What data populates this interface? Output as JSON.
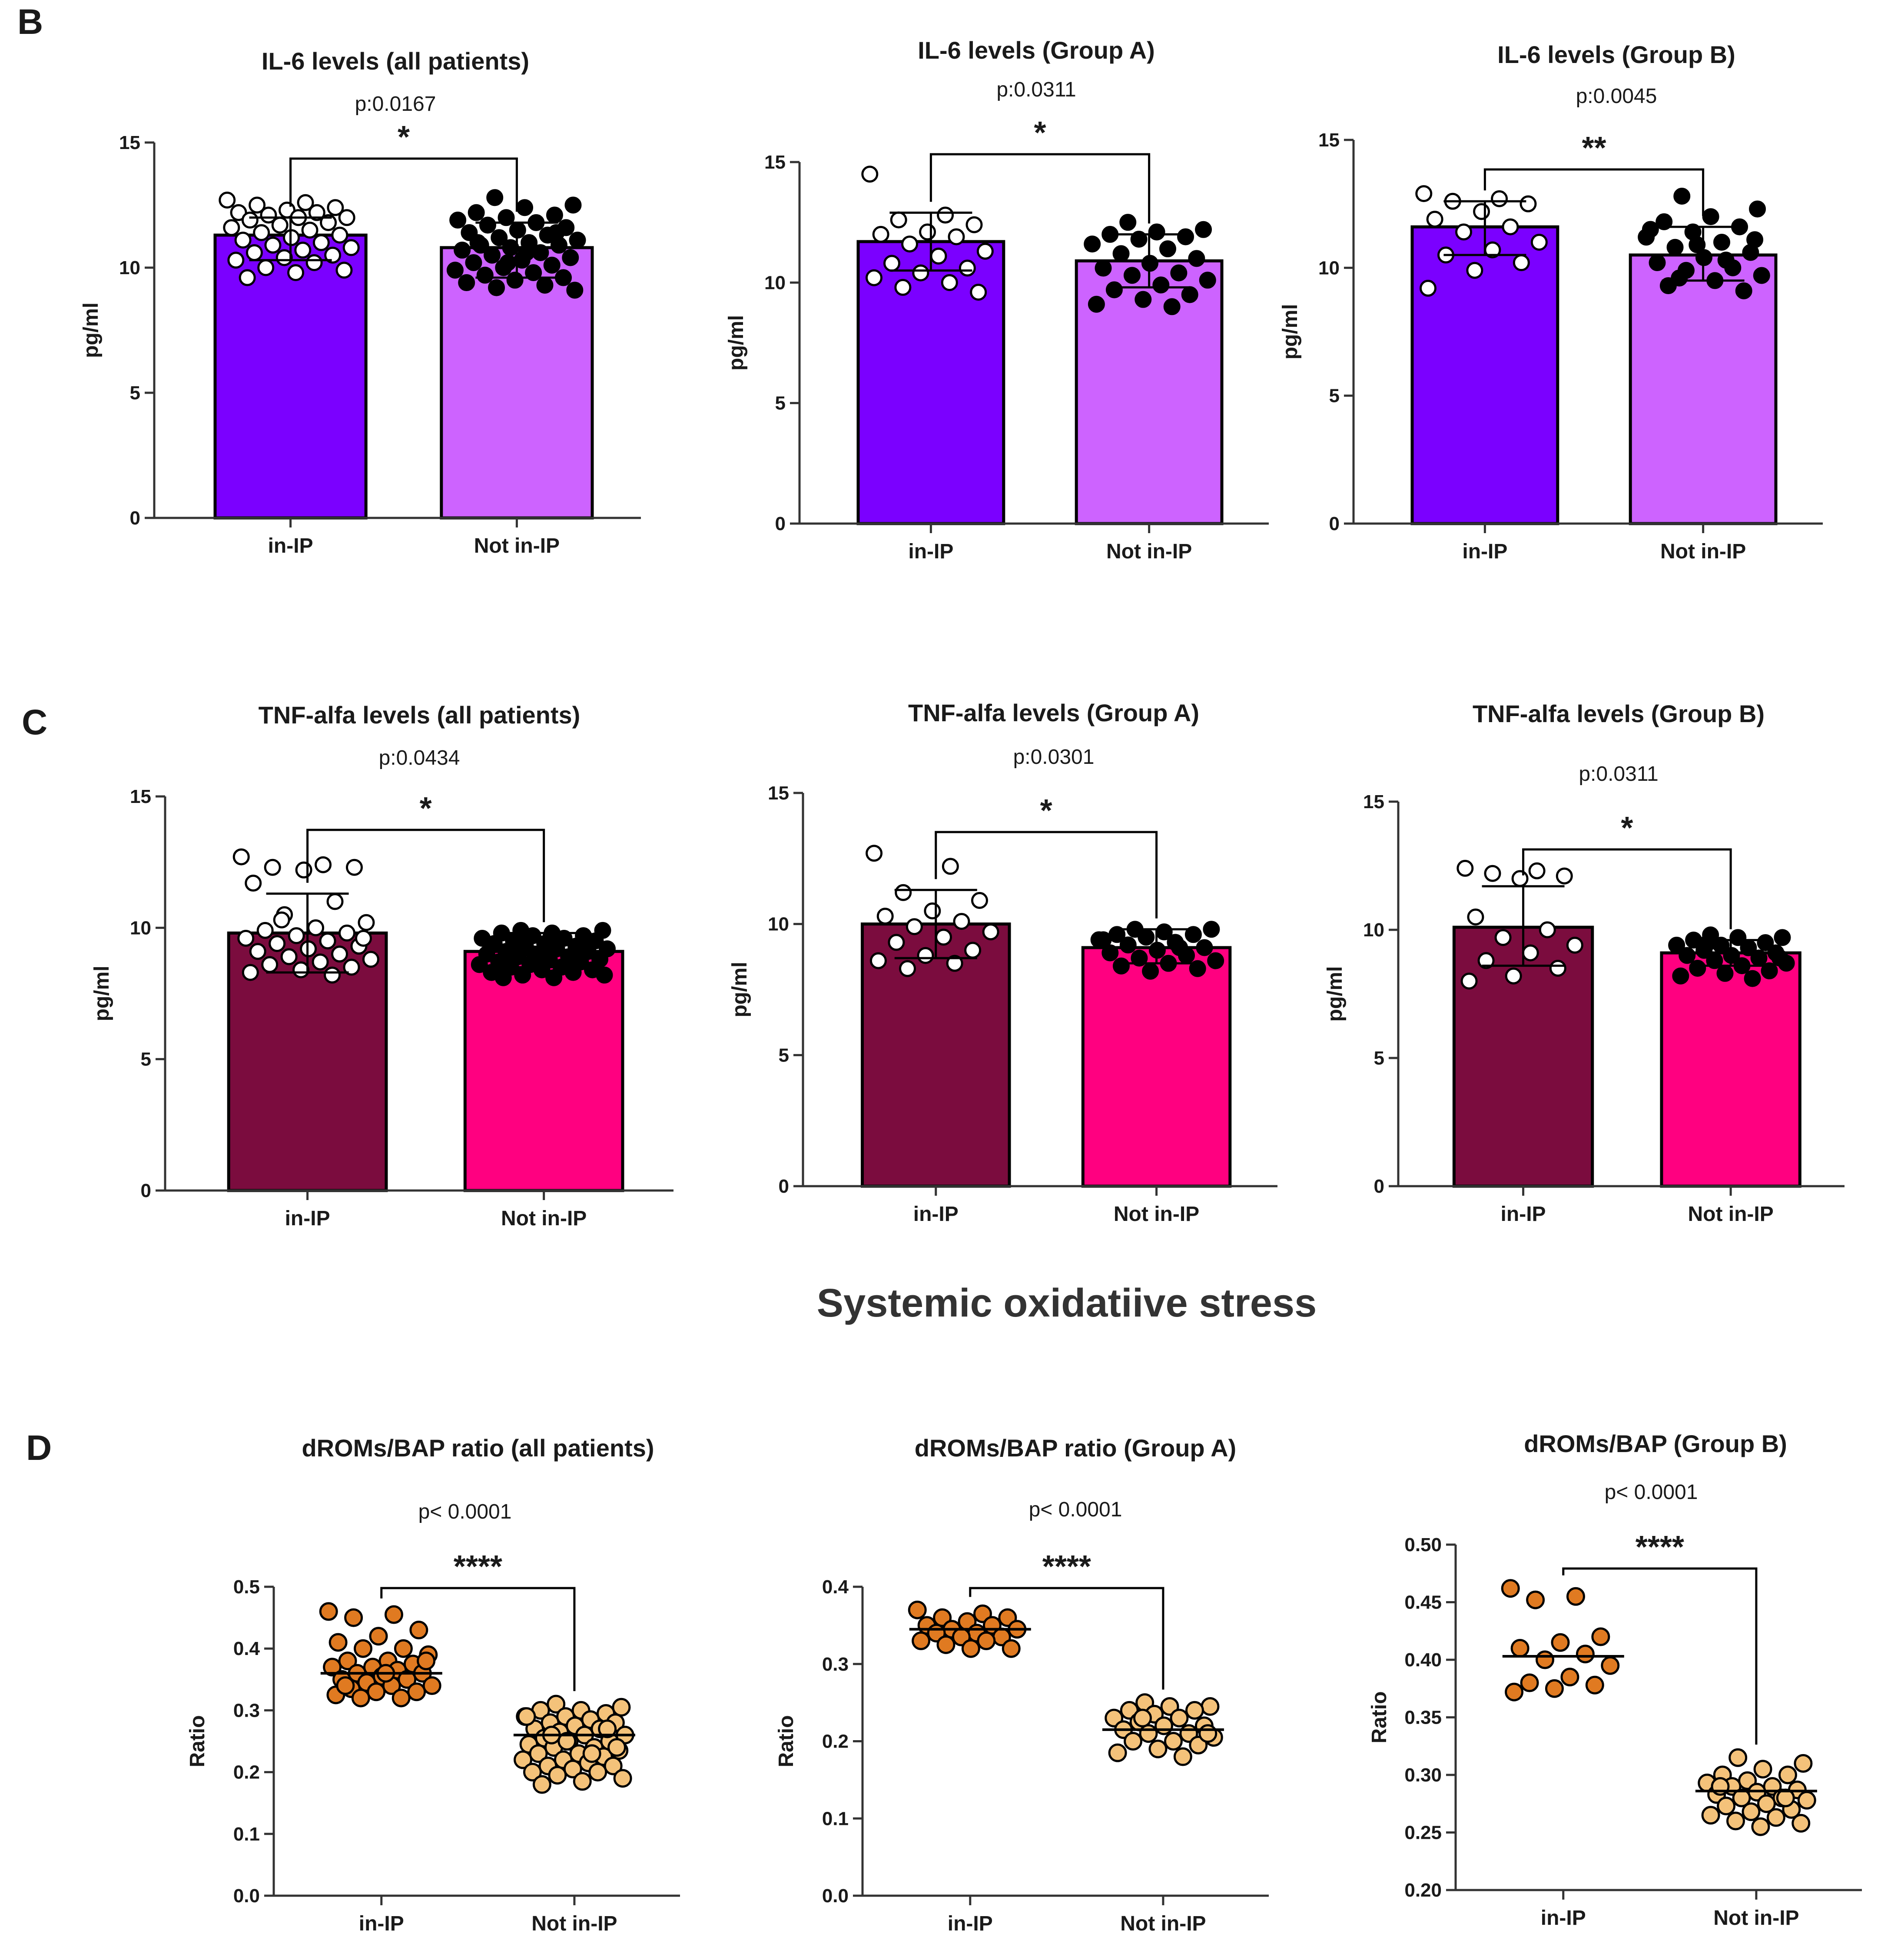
{
  "panel_letters": {
    "B": "B",
    "C": "C",
    "D": "D"
  },
  "section_heading": "Systemic oxidatiive stress",
  "chart_data": [
    {
      "id": "il6-all",
      "type": "bar",
      "title": "IL-6 levels (all patients)",
      "pvalue": "p:0.0167",
      "significance": "*",
      "ylabel": "pg/ml",
      "ylim": [
        0,
        15
      ],
      "yticks": [
        0,
        5,
        10,
        15
      ],
      "categories": [
        "in-IP",
        "Not in-IP"
      ],
      "values": [
        11.3,
        10.8
      ],
      "error": [
        [
          10.3,
          12.0
        ],
        [
          9.6,
          11.8
        ]
      ],
      "bar_colors": [
        "#7b00ff",
        "#cd63ff"
      ],
      "marker_fill": [
        "#ffffff",
        "#000000"
      ],
      "points": [
        [
          12.7,
          12.6,
          12.5,
          12.4,
          12.3,
          12.2,
          12.2,
          12.1,
          12.0,
          12.0,
          11.9,
          11.8,
          11.7,
          11.6,
          11.5,
          11.4,
          11.3,
          11.2,
          11.1,
          11.0,
          10.9,
          10.8,
          10.7,
          10.6,
          10.5,
          10.4,
          10.3,
          10.2,
          10.0,
          9.9,
          9.8,
          9.6
        ],
        [
          12.8,
          12.5,
          12.4,
          12.2,
          12.1,
          12.0,
          11.9,
          11.8,
          11.7,
          11.6,
          11.5,
          11.4,
          11.3,
          11.2,
          11.1,
          11.0,
          10.9,
          10.9,
          10.8,
          10.7,
          10.6,
          10.5,
          10.4,
          10.3,
          10.2,
          10.1,
          10.0,
          9.9,
          9.8,
          9.7,
          9.6,
          9.5,
          9.4,
          9.3,
          9.2,
          9.1,
          10.6,
          11.0,
          11.4,
          10.2
        ]
      ]
    },
    {
      "id": "il6-a",
      "type": "bar",
      "title": "IL-6 levels (Group A)",
      "pvalue": "p:0.0311",
      "significance": "*",
      "ylabel": "pg/ml",
      "ylim": [
        0,
        15
      ],
      "yticks": [
        0,
        5,
        10,
        15
      ],
      "categories": [
        "in-IP",
        "Not in-IP"
      ],
      "values": [
        11.7,
        10.9
      ],
      "error": [
        [
          10.5,
          12.9
        ],
        [
          9.8,
          12.0
        ]
      ],
      "bar_colors": [
        "#7b00ff",
        "#cd63ff"
      ],
      "marker_fill": [
        "#ffffff",
        "#000000"
      ],
      "points": [
        [
          14.5,
          12.8,
          12.6,
          12.4,
          12.1,
          12.0,
          11.9,
          11.6,
          11.3,
          11.1,
          10.8,
          10.6,
          10.4,
          10.2,
          10.0,
          9.8,
          9.6
        ],
        [
          12.5,
          12.2,
          12.1,
          12.0,
          11.9,
          11.8,
          11.6,
          11.4,
          11.2,
          11.0,
          10.8,
          10.6,
          10.4,
          10.3,
          10.1,
          9.9,
          9.7,
          9.5,
          9.3,
          9.1,
          9.0
        ]
      ]
    },
    {
      "id": "il6-b",
      "type": "bar",
      "title": "IL-6 levels (Group B)",
      "pvalue": "p:0.0045",
      "significance": "**",
      "ylabel": "pg/ml",
      "ylim": [
        0,
        15
      ],
      "yticks": [
        0,
        5,
        10,
        15
      ],
      "categories": [
        "in-IP",
        "Not in-IP"
      ],
      "values": [
        11.6,
        10.5
      ],
      "error": [
        [
          10.5,
          12.6
        ],
        [
          9.5,
          11.6
        ]
      ],
      "bar_colors": [
        "#7b00ff",
        "#cd63ff"
      ],
      "marker_fill": [
        "#ffffff",
        "#000000"
      ],
      "points": [
        [
          12.9,
          12.7,
          12.6,
          12.5,
          12.2,
          11.9,
          11.6,
          11.4,
          11.0,
          10.7,
          10.5,
          10.2,
          9.9,
          9.2
        ],
        [
          12.8,
          12.3,
          12.0,
          11.8,
          11.6,
          11.4,
          11.2,
          11.0,
          10.8,
          10.6,
          10.4,
          10.2,
          10.0,
          9.9,
          9.7,
          9.5,
          9.3,
          9.1,
          10.9,
          11.5,
          10.3,
          9.6,
          11.1
        ]
      ]
    },
    {
      "id": "tnf-all",
      "type": "bar",
      "title": "TNF-alfa levels (all patients)",
      "pvalue": "p:0.0434",
      "significance": "*",
      "ylabel": "pg/ml",
      "ylim": [
        0,
        15
      ],
      "yticks": [
        0,
        5,
        10,
        15
      ],
      "categories": [
        "in-IP",
        "Not in-IP"
      ],
      "values": [
        9.8,
        9.1
      ],
      "error": [
        [
          8.3,
          11.3
        ],
        [
          8.5,
          9.8
        ]
      ],
      "bar_colors": [
        "#7b0c3e",
        "#ff0080"
      ],
      "marker_fill": [
        "#ffffff",
        "#000000"
      ],
      "points": [
        [
          12.7,
          12.4,
          12.3,
          12.3,
          12.2,
          11.7,
          11.0,
          10.5,
          10.2,
          10.0,
          9.9,
          9.8,
          9.7,
          9.6,
          9.5,
          9.4,
          9.3,
          9.2,
          9.1,
          9.0,
          8.9,
          8.8,
          8.7,
          8.6,
          8.5,
          8.4,
          8.3,
          8.2,
          10.3,
          9.6
        ],
        [
          9.9,
          9.9,
          9.8,
          9.8,
          9.7,
          9.7,
          9.6,
          9.6,
          9.5,
          9.5,
          9.4,
          9.4,
          9.3,
          9.3,
          9.2,
          9.2,
          9.1,
          9.1,
          9.0,
          9.0,
          8.9,
          8.9,
          8.8,
          8.8,
          8.7,
          8.7,
          8.6,
          8.6,
          8.5,
          8.5,
          8.4,
          8.4,
          8.3,
          8.3,
          8.2,
          8.2,
          8.1,
          8.1,
          9.6,
          9.0
        ]
      ]
    },
    {
      "id": "tnf-a",
      "type": "bar",
      "title": "TNF-alfa levels (Group A)",
      "pvalue": "p:0.0301",
      "significance": "*",
      "ylabel": "pg/ml",
      "ylim": [
        0,
        15
      ],
      "yticks": [
        0,
        5,
        10,
        15
      ],
      "categories": [
        "in-IP",
        "Not in-IP"
      ],
      "values": [
        10.0,
        9.1
      ],
      "error": [
        [
          8.7,
          11.3
        ],
        [
          8.5,
          9.8
        ]
      ],
      "bar_colors": [
        "#7b0c3e",
        "#ff0080"
      ],
      "marker_fill": [
        "#ffffff",
        "#000000"
      ],
      "points": [
        [
          12.7,
          12.2,
          11.2,
          10.9,
          10.5,
          10.3,
          10.1,
          9.9,
          9.7,
          9.5,
          9.3,
          9.0,
          8.8,
          8.6,
          8.5,
          8.3
        ],
        [
          9.8,
          9.8,
          9.7,
          9.6,
          9.6,
          9.5,
          9.4,
          9.3,
          9.2,
          9.1,
          9.0,
          8.9,
          8.8,
          8.7,
          8.6,
          8.5,
          8.4,
          8.3,
          8.2,
          9.4,
          9.1
        ]
      ]
    },
    {
      "id": "tnf-b",
      "type": "bar",
      "title": "TNF-alfa levels (Group B)",
      "pvalue": "p:0.0311",
      "significance": "*",
      "ylabel": "pg/ml",
      "ylim": [
        0,
        15
      ],
      "yticks": [
        0,
        5,
        10,
        15
      ],
      "categories": [
        "in-IP",
        "Not in-IP"
      ],
      "values": [
        10.1,
        9.1
      ],
      "error": [
        [
          8.6,
          11.7
        ],
        [
          8.6,
          9.6
        ]
      ],
      "bar_colors": [
        "#7b0c3e",
        "#ff0080"
      ],
      "marker_fill": [
        "#ffffff",
        "#000000"
      ],
      "points": [
        [
          12.4,
          12.3,
          12.2,
          12.1,
          12.0,
          10.5,
          10.0,
          9.7,
          9.4,
          9.1,
          8.8,
          8.5,
          8.2,
          8.0
        ],
        [
          9.8,
          9.7,
          9.7,
          9.6,
          9.5,
          9.4,
          9.4,
          9.3,
          9.2,
          9.1,
          9.0,
          9.0,
          8.9,
          8.8,
          8.7,
          8.6,
          8.5,
          8.4,
          8.3,
          8.2,
          8.1,
          9.5,
          8.9
        ]
      ]
    },
    {
      "id": "drom-all",
      "type": "scatter",
      "title": "dROMs/BAP ratio (all patients)",
      "pvalue": "p< 0.0001",
      "significance": "****",
      "ylabel": "Ratio",
      "ylim": [
        0,
        0.5
      ],
      "yticks": [
        0.0,
        0.1,
        0.2,
        0.3,
        0.4,
        0.5
      ],
      "ytick_labels": [
        "0.0",
        "0.1",
        "0.2",
        "0.3",
        "0.4",
        "0.5"
      ],
      "categories": [
        "in-IP",
        "Not in-IP"
      ],
      "medians": [
        0.36,
        0.26
      ],
      "marker_colors": [
        "#e07a21",
        "#f4c27a"
      ],
      "points": [
        [
          0.46,
          0.455,
          0.45,
          0.43,
          0.42,
          0.41,
          0.4,
          0.4,
          0.39,
          0.38,
          0.38,
          0.375,
          0.37,
          0.37,
          0.365,
          0.36,
          0.36,
          0.355,
          0.35,
          0.35,
          0.345,
          0.34,
          0.34,
          0.335,
          0.33,
          0.33,
          0.325,
          0.32,
          0.32,
          0.38,
          0.36,
          0.34
        ],
        [
          0.31,
          0.305,
          0.3,
          0.3,
          0.295,
          0.29,
          0.29,
          0.285,
          0.28,
          0.28,
          0.275,
          0.27,
          0.27,
          0.265,
          0.26,
          0.26,
          0.255,
          0.25,
          0.25,
          0.245,
          0.24,
          0.24,
          0.235,
          0.23,
          0.23,
          0.225,
          0.22,
          0.22,
          0.215,
          0.21,
          0.21,
          0.205,
          0.2,
          0.2,
          0.195,
          0.19,
          0.185,
          0.18,
          0.27,
          0.25,
          0.29,
          0.23,
          0.26,
          0.24
        ]
      ]
    },
    {
      "id": "drom-a",
      "type": "scatter",
      "title": "dROMs/BAP ratio (Group A)",
      "pvalue": "p< 0.0001",
      "significance": "****",
      "ylabel": "Ratio",
      "ylim": [
        0,
        0.4
      ],
      "yticks": [
        0.0,
        0.1,
        0.2,
        0.3,
        0.4
      ],
      "ytick_labels": [
        "0.0",
        "0.1",
        "0.2",
        "0.3",
        "0.4"
      ],
      "categories": [
        "in-IP",
        "Not in-IP"
      ],
      "medians": [
        0.345,
        0.215
      ],
      "marker_colors": [
        "#e07a21",
        "#f4c27a"
      ],
      "points": [
        [
          0.37,
          0.365,
          0.36,
          0.36,
          0.355,
          0.35,
          0.35,
          0.345,
          0.345,
          0.34,
          0.34,
          0.335,
          0.335,
          0.33,
          0.33,
          0.325,
          0.32,
          0.32
        ],
        [
          0.25,
          0.245,
          0.245,
          0.24,
          0.24,
          0.235,
          0.23,
          0.23,
          0.225,
          0.22,
          0.22,
          0.215,
          0.21,
          0.21,
          0.205,
          0.2,
          0.2,
          0.195,
          0.19,
          0.185,
          0.18,
          0.23,
          0.21
        ]
      ]
    },
    {
      "id": "drom-b",
      "type": "scatter",
      "title": "dROMs/BAP  (Group B)",
      "pvalue": "p< 0.0001",
      "significance": "****",
      "ylabel": "Ratio",
      "ylim": [
        0.2,
        0.5
      ],
      "yticks": [
        0.2,
        0.25,
        0.3,
        0.35,
        0.4,
        0.45,
        0.5
      ],
      "ytick_labels": [
        "0.20",
        "0.25",
        "0.30",
        "0.35",
        "0.40",
        "0.45",
        "0.50"
      ],
      "categories": [
        "in-IP",
        "Not in-IP"
      ],
      "medians": [
        0.403,
        0.286
      ],
      "marker_colors": [
        "#e07a21",
        "#f4c27a"
      ],
      "points": [
        [
          0.462,
          0.455,
          0.452,
          0.42,
          0.415,
          0.41,
          0.405,
          0.4,
          0.395,
          0.385,
          0.38,
          0.378,
          0.375,
          0.372
        ],
        [
          0.315,
          0.31,
          0.305,
          0.3,
          0.3,
          0.295,
          0.293,
          0.29,
          0.29,
          0.287,
          0.285,
          0.283,
          0.28,
          0.28,
          0.278,
          0.275,
          0.273,
          0.27,
          0.268,
          0.265,
          0.263,
          0.26,
          0.258,
          0.255,
          0.29,
          0.28
        ]
      ]
    }
  ]
}
